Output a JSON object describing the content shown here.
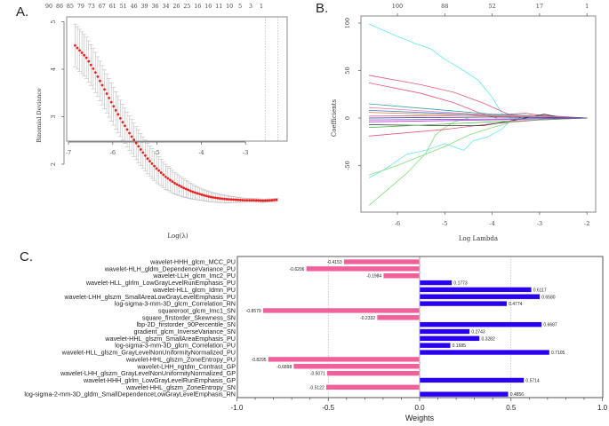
{
  "chart_data": [
    {
      "panel": "A.",
      "type": "scatter",
      "title": "",
      "xlabel": "Log(λ)",
      "ylabel": "Binomial Deviance",
      "xlim": [
        -7.0,
        -2.2
      ],
      "ylim": [
        1.1,
        5.1
      ],
      "x_ticks": [
        -7,
        -6,
        -5,
        -4,
        -3
      ],
      "y_ticks": [
        2,
        3,
        4,
        5
      ],
      "top_axis_labels": [
        "90",
        "86",
        "85",
        "79",
        "73",
        "67",
        "61",
        "51",
        "46",
        "39",
        "36",
        "34",
        "26",
        "25",
        "16",
        "16",
        "11",
        "10",
        "5",
        "3",
        "1"
      ],
      "vlines_logLambda": [
        -2.55,
        -2.27
      ],
      "points_desc": "Cross-validated binomial deviance (red points) with grey error bars; decreases from about 4.5 at logλ=-6.85 to a minimum ~1.25 near logλ=-2.6",
      "series": [
        {
          "name": "mean_deviance",
          "x": [
            -6.85,
            -6.6,
            -6.4,
            -6.2,
            -6.0,
            -5.8,
            -5.6,
            -5.4,
            -5.2,
            -5.0,
            -4.8,
            -4.6,
            -4.4,
            -4.2,
            -4.0,
            -3.8,
            -3.6,
            -3.4,
            -3.2,
            -3.0,
            -2.8,
            -2.6,
            -2.4,
            -2.3
          ],
          "values": [
            4.5,
            4.25,
            3.95,
            3.6,
            3.25,
            2.92,
            2.62,
            2.35,
            2.1,
            1.9,
            1.73,
            1.6,
            1.5,
            1.42,
            1.36,
            1.31,
            1.28,
            1.26,
            1.25,
            1.24,
            1.24,
            1.23,
            1.24,
            1.25
          ]
        },
        {
          "name": "error_halfwidth",
          "x": [
            -6.85,
            -6.0,
            -5.0,
            -4.0,
            -3.0,
            -2.3
          ],
          "values": [
            0.45,
            0.4,
            0.3,
            0.12,
            0.04,
            0.03
          ]
        }
      ]
    },
    {
      "panel": "B.",
      "type": "line",
      "title": "",
      "xlabel": "Log Lambda",
      "ylabel": "Coefficients",
      "xlim": [
        -6.65,
        -1.8
      ],
      "ylim": [
        -105,
        105
      ],
      "x_ticks": [
        -6,
        -5,
        -4,
        -3,
        -2
      ],
      "y_ticks": [
        -50,
        0,
        50,
        100
      ],
      "top_axis_labels": [
        "100",
        "88",
        "52",
        "17",
        "1"
      ],
      "top_axis_positions": [
        -6,
        -5,
        -4,
        -3,
        -2
      ],
      "series": [
        {
          "name": "cyan-1",
          "color": "#66e6ee",
          "x": [
            -6.6,
            -6.0,
            -5.6,
            -5.3,
            -5.0,
            -4.6,
            -4.3,
            -4.0,
            -3.8,
            -3.6
          ],
          "values": [
            99,
            86,
            78,
            73,
            62,
            50,
            40,
            22,
            5,
            0
          ]
        },
        {
          "name": "cyan-2",
          "color": "#66e6ee",
          "x": [
            -6.6,
            -6.3,
            -5.8,
            -5.4,
            -5.0,
            -4.6,
            -4.4,
            -4.1,
            -3.8,
            -3.6,
            -3.4
          ],
          "values": [
            -63,
            -55,
            -38,
            -34,
            -27,
            -34,
            -24,
            -20,
            -12,
            -2,
            0
          ]
        },
        {
          "name": "green-1",
          "color": "#7fe07a",
          "x": [
            -6.6,
            -6.2,
            -5.8,
            -5.4,
            -5.2,
            -5.0,
            -4.8,
            -4.5
          ],
          "values": [
            -92,
            -75,
            -58,
            -37,
            -18,
            -10,
            -4,
            0
          ]
        },
        {
          "name": "green-2",
          "color": "#7fe07a",
          "x": [
            -6.6,
            -6.0,
            -5.5,
            -5.0,
            -4.5,
            -4.0,
            -3.7,
            -3.5
          ],
          "values": [
            -60,
            -50,
            -40,
            -30,
            -18,
            -10,
            -6,
            0
          ]
        },
        {
          "name": "red-1",
          "color": "#e05a7a",
          "x": [
            -6.6,
            -5.5,
            -4.8,
            -4.2,
            -3.7,
            -3.4
          ],
          "values": [
            45,
            35,
            27,
            16,
            5,
            0
          ]
        },
        {
          "name": "red-2",
          "color": "#e05a7a",
          "x": [
            -6.6,
            -5.5,
            -4.8,
            -4.3,
            -3.9
          ],
          "values": [
            37,
            26,
            16,
            6,
            0
          ]
        },
        {
          "name": "red-3",
          "color": "#e05a7a",
          "x": [
            -6.6,
            -5.0,
            -4.0,
            -3.0,
            -2.0
          ],
          "values": [
            -19,
            -12,
            -6,
            -2,
            0
          ]
        },
        {
          "name": "red-4",
          "color": "#d94f86",
          "x": [
            -6.6,
            -4.0,
            -3.3,
            -3.0,
            -2.0
          ],
          "values": [
            2,
            3,
            5,
            3,
            0
          ]
        },
        {
          "name": "black-1",
          "color": "#333333",
          "x": [
            -6.6,
            -5.0,
            -4.2,
            -3.6,
            -2.9,
            -2.6,
            -2.0
          ],
          "values": [
            -7,
            -8,
            -8,
            -3,
            4,
            1,
            0
          ]
        },
        {
          "name": "green-3",
          "color": "#50c050",
          "x": [
            -6.6,
            -4.0,
            -2.0
          ],
          "values": [
            -10,
            -4,
            0
          ]
        },
        {
          "name": "blue-1",
          "color": "#3c78e0",
          "x": [
            -6.6,
            -4.0,
            -2.0
          ],
          "values": [
            8,
            3,
            0
          ]
        },
        {
          "name": "teal-1",
          "color": "#2aa198",
          "x": [
            -6.6,
            -4.0,
            -2.0
          ],
          "values": [
            15,
            4,
            0
          ]
        },
        {
          "name": "magenta-1",
          "color": "#c83cc8",
          "x": [
            -6.6,
            -4.0,
            -2.0
          ],
          "values": [
            -4,
            -2,
            0
          ]
        },
        {
          "name": "orange-1",
          "color": "#d08030",
          "x": [
            -6.6,
            -4.0,
            -2.0
          ],
          "values": [
            6,
            2,
            0
          ]
        },
        {
          "name": "purple-1",
          "color": "#7a50c8",
          "x": [
            -6.6,
            -4.0,
            -2.0
          ],
          "values": [
            -2,
            -1,
            0
          ]
        },
        {
          "name": "pink-1",
          "color": "#f080b0",
          "x": [
            -6.6,
            -4.0,
            -2.0
          ],
          "values": [
            11,
            3,
            0
          ]
        },
        {
          "name": "navy-1",
          "color": "#223388",
          "x": [
            -6.6,
            -4.0,
            -2.0
          ],
          "values": [
            0,
            1,
            0
          ]
        }
      ]
    },
    {
      "panel": "C.",
      "type": "bar",
      "orientation": "horizontal",
      "title": "",
      "xlabel": "Weights",
      "ylabel": "",
      "xlim": [
        -1.0,
        1.0
      ],
      "x_ticks": [
        "-1.0",
        "-0.5",
        "0.0",
        "0.5",
        "1.0"
      ],
      "x_tick_values": [
        -1.0,
        -0.5,
        0.0,
        0.5,
        1.0
      ],
      "gridlines": [
        -0.5,
        0.5
      ],
      "colors": {
        "negative": "#f0609a",
        "positive": "#2a00f0"
      },
      "categories": [
        "wavelet-HHH_glcm_MCC_PU",
        "wavelet-HLH_gldm_DependenceVariance_PU",
        "wavelet-LLH_glcm_Imc2_PU",
        "wavelet-HLL_glrlm_LowGrayLevelRunEmphasis_PU",
        "wavelet-HLL_glcm_Idmn_PU",
        "wavelet-LHH_glszm_SmallAreaLowGrayLevelEmphasis_PU",
        "log-sigma-3-mm-3D_glcm_Correlation_RN",
        "squareroot_glcm_Imc1_SN",
        "square_firstorder_Skewness_SN",
        "lbp-2D_firstorder_90Percentile_SN",
        "gradient_glcm_InverseVariance_SN",
        "wavelet-HHL_glszm_SmallAreaEmphasis_PU",
        "log-sigma-3-mm-3D_glcm_Correlation_PU",
        "wavelet-HLL_glszm_GrayLevelNonUniformityNormalized_PU",
        "wavelet-HHL_glszm_ZoneEntropy_PU",
        "wavelet-LHH_ngtdm_Contrast_GP",
        "wavelet-LHH_glszm_GrayLevelNonUniformityNormalized_GP",
        "wavelet-HHH_glrlm_LowGrayLevelRunEmphasis_GP",
        "wavelet-HHL_glszm_ZoneEntropy_SN",
        "log-sigma-2-mm-3D_gldm_SmallDependenceLowGrayLevelEmphasis_RN"
      ],
      "values": [
        -0.4153,
        -0.6206,
        -0.1984,
        0.1773,
        0.6117,
        0.658,
        0.4774,
        -0.8579,
        -0.2332,
        0.6687,
        0.2743,
        0.3282,
        0.1685,
        0.7105,
        -0.8295,
        -0.6898,
        -0.5071,
        0.5714,
        -0.5122,
        0.4856
      ],
      "value_labels": [
        "-0.4153",
        "-0.6206",
        "-0.1984",
        "0.1773",
        "0.6117",
        "0.6580",
        "0.4774",
        "-0.8579",
        "-0.2332",
        "0.6687",
        "0.2743",
        "0.3282",
        "0.1685",
        "0.7105",
        "-0.8295",
        "-0.6898",
        "-0.5071",
        "0.5714",
        "-0.5122",
        "0.4856"
      ]
    }
  ]
}
